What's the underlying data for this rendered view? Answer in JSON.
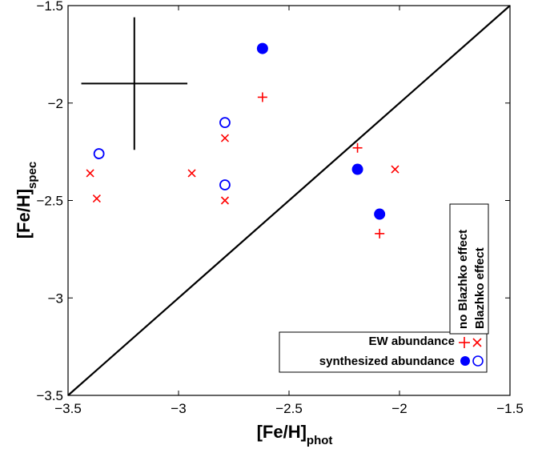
{
  "chart_data": {
    "type": "scatter",
    "xlabel_main": "[Fe/H]",
    "xlabel_sub": "phot",
    "ylabel_main": "[Fe/H]",
    "ylabel_sub": "spec",
    "xlim": [
      -3.5,
      -1.5
    ],
    "ylim": [
      -3.5,
      -1.5
    ],
    "x_ticks": [
      -3.5,
      -3,
      -2.5,
      -2,
      -1.5
    ],
    "y_ticks": [
      -3.5,
      -3,
      -2.5,
      -2,
      -1.5
    ],
    "x_tick_labels": [
      "−3.5",
      "−3",
      "−2.5",
      "−2",
      "−1.5"
    ],
    "y_tick_labels": [
      "−3.5",
      "−3",
      "−2.5",
      "−2",
      "−1.5"
    ],
    "grid": false,
    "identity_line": true,
    "error_bar": {
      "x": -3.2,
      "y": -1.9,
      "x_err": 0.24,
      "y_err": 0.34
    },
    "series": [
      {
        "marker": "plus",
        "color": "#ff0000",
        "points": [
          [
            -2.62,
            -1.97
          ],
          [
            -2.19,
            -2.23
          ],
          [
            -2.09,
            -2.67
          ]
        ]
      },
      {
        "marker": "x",
        "color": "#ff0000",
        "points": [
          [
            -3.4,
            -2.36
          ],
          [
            -3.37,
            -2.49
          ],
          [
            -2.94,
            -2.36
          ],
          [
            -2.79,
            -2.18
          ],
          [
            -2.79,
            -2.5
          ],
          [
            -2.02,
            -2.34
          ]
        ]
      },
      {
        "marker": "filled-circle",
        "color": "#0000ff",
        "points": [
          [
            -2.62,
            -1.72
          ],
          [
            -2.19,
            -2.34
          ],
          [
            -2.09,
            -2.57
          ]
        ]
      },
      {
        "marker": "open-circle",
        "color": "#0000ff",
        "points": [
          [
            -3.36,
            -2.26
          ],
          [
            -2.79,
            -2.1
          ],
          [
            -2.79,
            -2.42
          ]
        ]
      }
    ],
    "legend": {
      "placement": "bottom-right",
      "col_headers": [
        "no Blazhko effect",
        "Blazhko effect"
      ],
      "rows": [
        "EW abundance",
        "synthesized abundance"
      ]
    }
  }
}
